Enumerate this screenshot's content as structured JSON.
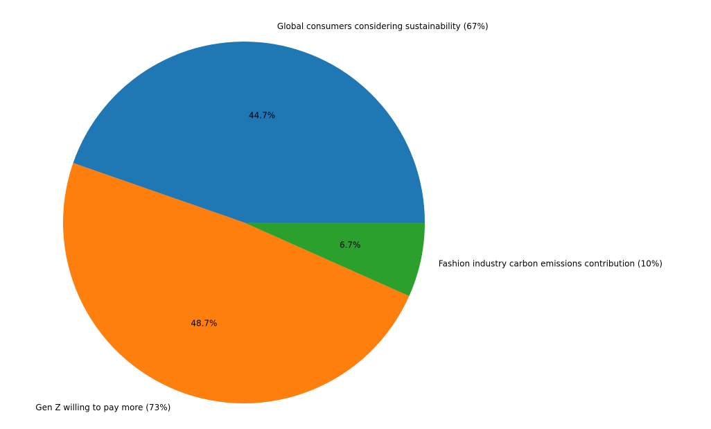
{
  "chart_data": {
    "type": "pie",
    "title": "",
    "categories": [
      "Global consumers considering sustainability (67%)",
      "Gen Z willing to pay more (73%)",
      "Fashion industry carbon emissions contribution (10%)"
    ],
    "values": [
      67,
      73,
      10
    ],
    "percent_labels": [
      "44.7%",
      "48.7%",
      "6.7%"
    ],
    "colors": [
      "#1f77b4",
      "#ff7f0e",
      "#2ca02c"
    ],
    "start_angle_deg": 0,
    "direction": "counterclockwise",
    "legend": "none"
  }
}
